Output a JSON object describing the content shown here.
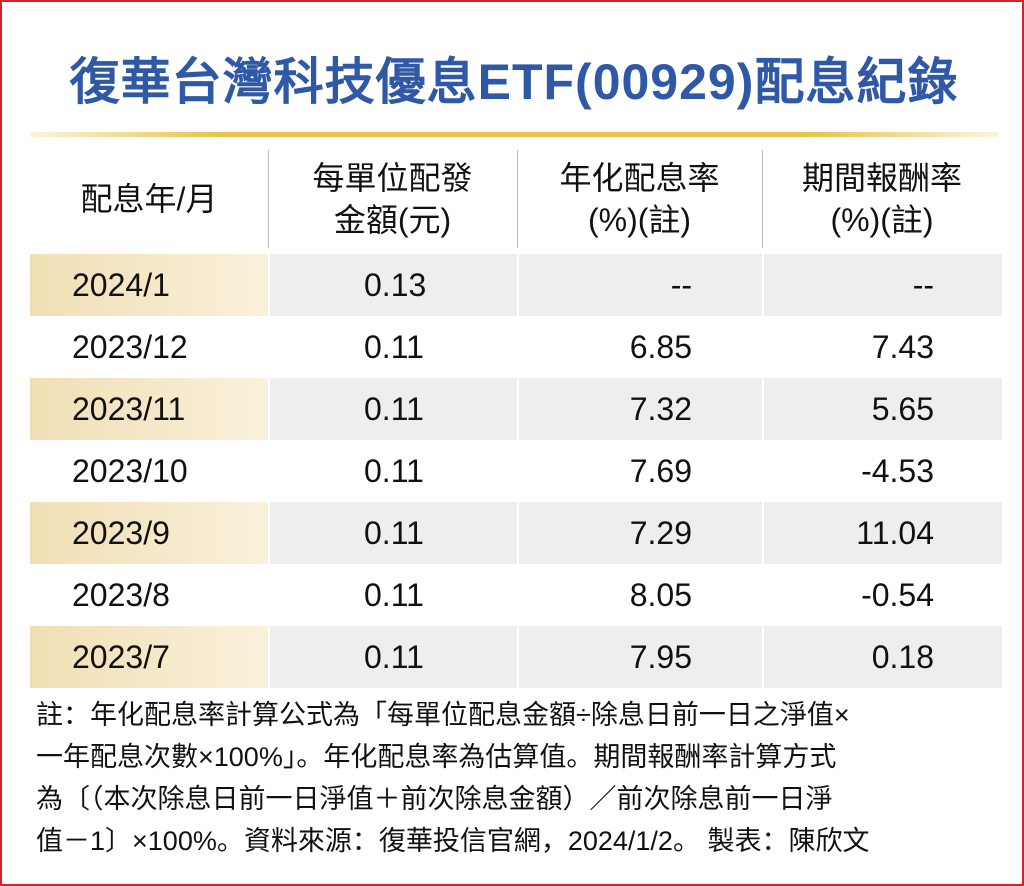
{
  "title": "復華台灣科技優息ETF(00929)配息紀錄",
  "table": {
    "header": [
      [
        "配息年/月"
      ],
      [
        "每單位配發",
        "金額(元)"
      ],
      [
        "年化配息率",
        "(%)(註)"
      ],
      [
        "期間報酬率",
        "(%)(註)"
      ]
    ],
    "rows": [
      [
        "2024/1",
        "0.13",
        "--",
        "--"
      ],
      [
        "2023/12",
        "0.11",
        "6.85",
        "7.43"
      ],
      [
        "2023/11",
        "0.11",
        "7.32",
        "5.65"
      ],
      [
        "2023/10",
        "0.11",
        "7.69",
        "-4.53"
      ],
      [
        "2023/9",
        "0.11",
        "7.29",
        "11.04"
      ],
      [
        "2023/8",
        "0.11",
        "8.05",
        "-0.54"
      ],
      [
        "2023/7",
        "0.11",
        "7.95",
        "0.18"
      ]
    ]
  },
  "note": [
    "註：年化配息率計算公式為「每單位配息金額÷除息日前一日之淨值×",
    "一年配息次數×100%」。年化配息率為估算值。期間報酬率計算方式",
    "為〔（本次除息日前一日淨值＋前次除息金額）／前次除息前一日淨",
    "值－1〕×100%。資料來源：復華投信官網，2024/1/2。 製表：陳欣文"
  ]
}
